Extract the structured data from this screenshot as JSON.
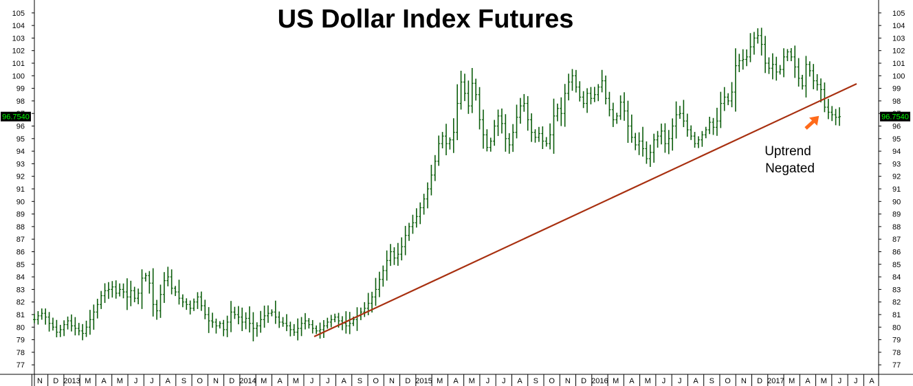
{
  "chart_data": {
    "type": "ohlc-bar",
    "title": "US Dollar Index Futures",
    "y_ticks": [
      77,
      78,
      79,
      80,
      81,
      82,
      83,
      84,
      85,
      86,
      87,
      88,
      89,
      90,
      91,
      92,
      93,
      94,
      95,
      96,
      97,
      98,
      99,
      100,
      101,
      102,
      103,
      104,
      105
    ],
    "ylim": [
      76.3,
      105.7
    ],
    "x_labels": [
      "N",
      "D",
      "2013",
      "M",
      "A",
      "M",
      "J",
      "J",
      "A",
      "S",
      "O",
      "N",
      "D",
      "2014",
      "M",
      "A",
      "M",
      "J",
      "J",
      "A",
      "S",
      "O",
      "N",
      "D",
      "2015",
      "M",
      "A",
      "M",
      "J",
      "J",
      "A",
      "S",
      "O",
      "N",
      "D",
      "2016",
      "M",
      "A",
      "M",
      "J",
      "J",
      "A",
      "S",
      "O",
      "N",
      "D",
      "2017",
      "M",
      "A",
      "M",
      "J",
      "J",
      "A"
    ],
    "last_price": "96.7540",
    "grid": false,
    "colors": {
      "bars": "#0a5c0a",
      "trendline": "#a83010",
      "arrow": "#ff6a1a",
      "price_tag_bg": "#000000",
      "price_tag_text": "#00ff00"
    },
    "weekly_closes": [
      80.6,
      80.9,
      81.1,
      80.8,
      80.3,
      80.0,
      79.6,
      79.8,
      80.2,
      80.5,
      80.1,
      79.9,
      79.7,
      79.5,
      80.0,
      80.6,
      81.2,
      81.8,
      82.5,
      82.9,
      83.0,
      83.2,
      82.7,
      83.0,
      82.8,
      82.4,
      82.9,
      82.3,
      82.7,
      83.9,
      84.1,
      83.5,
      81.8,
      81.3,
      82.6,
      83.7,
      84.0,
      83.1,
      82.8,
      82.3,
      82.0,
      81.8,
      81.5,
      82.0,
      82.4,
      81.7,
      81.0,
      80.5,
      80.4,
      80.1,
      80.3,
      79.8,
      80.4,
      81.2,
      81.0,
      80.8,
      80.4,
      80.7,
      80.3,
      79.9,
      80.1,
      80.6,
      80.9,
      81.1,
      81.2,
      80.8,
      80.4,
      80.3,
      80.1,
      79.8,
      79.6,
      79.9,
      80.3,
      80.5,
      80.2,
      79.9,
      79.7,
      79.8,
      80.1,
      80.4,
      80.6,
      80.8,
      80.5,
      80.3,
      80.1,
      80.3,
      80.6,
      80.9,
      81.2,
      81.5,
      81.9,
      82.4,
      83.0,
      83.8,
      84.5,
      85.3,
      86.0,
      85.5,
      85.8,
      86.4,
      87.3,
      88.0,
      88.3,
      88.8,
      89.5,
      90.2,
      91.0,
      92.1,
      93.2,
      94.6,
      95.2,
      94.6,
      94.9,
      95.5,
      97.8,
      99.5,
      98.6,
      97.6,
      99.4,
      98.5,
      96.5,
      95.3,
      94.3,
      94.8,
      96.0,
      96.8,
      96.2,
      95.0,
      94.5,
      95.5,
      96.7,
      97.6,
      97.8,
      96.5,
      95.5,
      95.1,
      95.4,
      94.8,
      94.6,
      95.3,
      96.8,
      97.4,
      97.0,
      98.6,
      99.5,
      100.0,
      99.1,
      98.3,
      97.8,
      98.6,
      98.2,
      98.5,
      99.1,
      99.6,
      98.2,
      97.3,
      96.5,
      96.8,
      97.9,
      97.2,
      96.0,
      95.1,
      94.5,
      94.8,
      94.2,
      93.4,
      93.9,
      94.9,
      95.2,
      95.6,
      94.6,
      95.0,
      96.0,
      96.9,
      97.0,
      96.4,
      95.7,
      95.2,
      94.6,
      94.9,
      95.3,
      95.7,
      96.3,
      95.9,
      96.4,
      97.8,
      98.3,
      98.0,
      98.7,
      100.8,
      101.2,
      101.3,
      101.5,
      102.3,
      103.0,
      103.2,
      102.5,
      101.0,
      100.6,
      100.9,
      100.3,
      100.5,
      101.5,
      101.9,
      101.5,
      100.7,
      99.8,
      99.2,
      100.9,
      100.4,
      99.6,
      99.3,
      98.9,
      97.5,
      97.1,
      96.9,
      96.7,
      96.75
    ]
  },
  "annotation": {
    "line1": "Uptrend",
    "line2": "Negated"
  }
}
